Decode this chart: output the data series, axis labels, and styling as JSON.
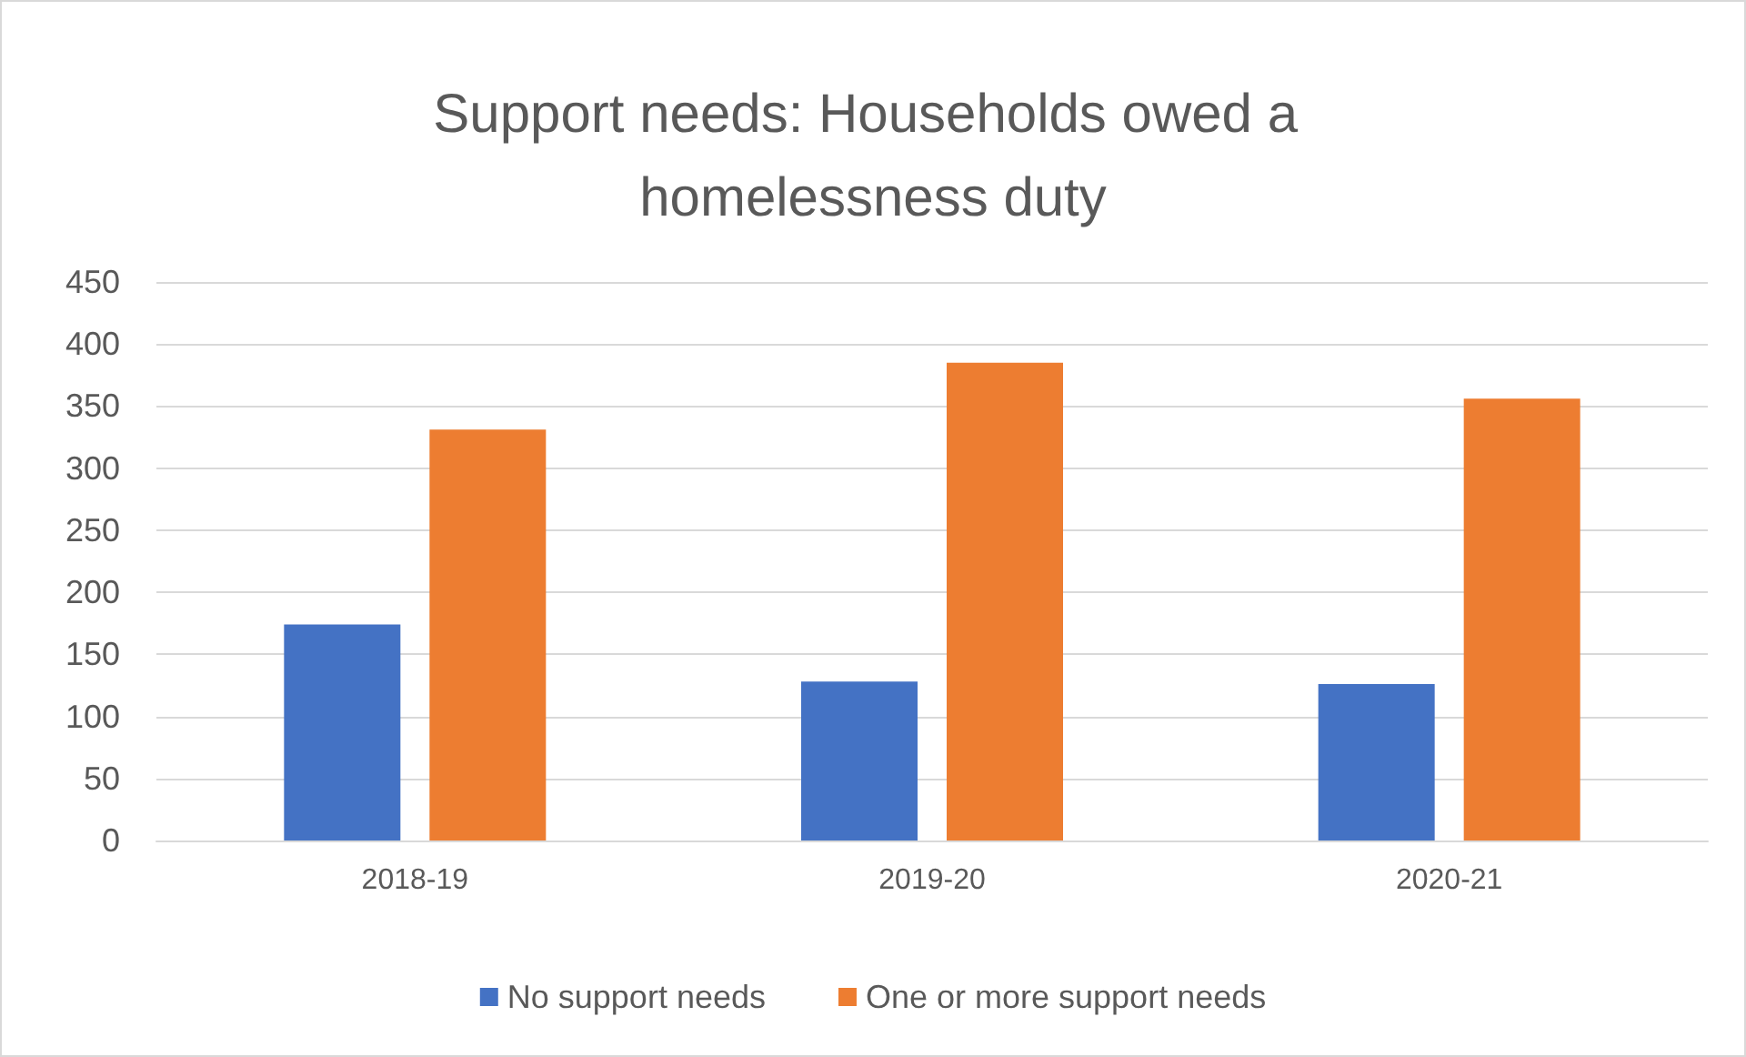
{
  "chart_data": {
    "type": "bar",
    "title": "Support needs: Households owed a homelessness duty",
    "categories": [
      "2018-19",
      "2019-20",
      "2020-21"
    ],
    "series": [
      {
        "name": "No support needs",
        "color": "#4472c4",
        "values": [
          174,
          128,
          126
        ]
      },
      {
        "name": "One or more support needs",
        "color": "#ed7d31",
        "values": [
          331,
          385,
          356
        ]
      }
    ],
    "ylim": [
      0,
      450
    ],
    "yticks": [
      0,
      50,
      100,
      150,
      200,
      250,
      300,
      350,
      400,
      450
    ],
    "grid": "y",
    "legend": "bottom"
  }
}
